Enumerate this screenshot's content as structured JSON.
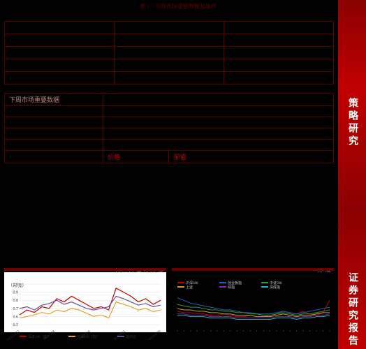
{
  "sidebar": {
    "label1": "策略研究",
    "label2": "证券研究报告"
  },
  "top_note": "表 1：下周市场重要数据及事件",
  "table1": {
    "cols": [
      "",
      "",
      ""
    ],
    "rows": [
      [
        "",
        "",
        ""
      ],
      [
        "",
        "",
        ""
      ],
      [
        "",
        "",
        ""
      ],
      [
        "",
        "",
        ""
      ],
      [
        "",
        "",
        ""
      ]
    ]
  },
  "table2": {
    "header_row": [
      "下周市场重要数据",
      ""
    ],
    "rows": [
      [
        "",
        ""
      ],
      [
        "",
        ""
      ],
      [
        "",
        ""
      ],
      [
        "",
        ""
      ],
      [
        "",
        "价格",
        "前值"
      ]
    ]
  },
  "chart1": {
    "title_left": "103 元-105 元",
    "title_right": "特殊情景估值看",
    "yleft_label": "（元/克）",
    "yleft_ticks": [
      0.5,
      0.6,
      0.7,
      0.8,
      0.9,
      1.0
    ],
    "x_labels": [
      "2012/12/12",
      "2014/7/18",
      "2016/02/4",
      "2017/09/1",
      "2019/04/30"
    ],
    "series": [
      {
        "name": "深证100（右）",
        "color": "#c00000",
        "values": [
          0.62,
          0.68,
          0.65,
          0.72,
          0.7,
          0.82,
          0.78,
          0.85,
          0.8,
          0.75,
          0.7,
          0.72,
          0.68,
          0.95,
          0.9,
          0.85,
          0.78,
          0.82,
          0.75,
          0.8
        ]
      },
      {
        "name": "沪深300（右）",
        "color": "#e8a030",
        "values": [
          0.58,
          0.6,
          0.62,
          0.65,
          0.63,
          0.68,
          0.66,
          0.7,
          0.68,
          0.64,
          0.6,
          0.62,
          0.58,
          0.78,
          0.75,
          0.72,
          0.68,
          0.7,
          0.66,
          0.68
        ]
      },
      {
        "name": "溢价比",
        "color": "#6a4a9a",
        "values": [
          0.7,
          0.72,
          0.68,
          0.74,
          0.76,
          0.8,
          0.75,
          0.78,
          0.74,
          0.7,
          0.68,
          0.7,
          0.72,
          0.85,
          0.82,
          0.78,
          0.74,
          0.76,
          0.72,
          0.74
        ]
      }
    ]
  },
  "chart2": {
    "title_right": "数据",
    "legend_items": [
      {
        "name": "沪深300",
        "color": "#c00000"
      },
      {
        "name": "创业板指",
        "color": "#2060c0"
      },
      {
        "name": "中证500",
        "color": "#30a030"
      },
      {
        "name": "上证",
        "color": "#d0a020"
      },
      {
        "name": "综指",
        "color": "#7030a0"
      },
      {
        "name": "深成指",
        "color": "#20b0c0"
      }
    ],
    "series": [
      {
        "color": "#c00000",
        "values": [
          14,
          13,
          13,
          12,
          12,
          11,
          11,
          12,
          11,
          10,
          10,
          11,
          10,
          10,
          11,
          12,
          14,
          13,
          12,
          14,
          12,
          11,
          13,
          22
        ]
      },
      {
        "color": "#2060c0",
        "values": [
          24,
          22,
          20,
          19,
          18,
          17,
          16,
          15,
          15,
          14,
          13,
          13,
          12,
          12,
          12,
          13,
          14,
          13,
          12,
          13,
          14,
          15,
          16,
          17
        ]
      },
      {
        "color": "#30a030",
        "values": [
          19,
          18,
          17,
          17,
          16,
          15,
          15,
          14,
          14,
          13,
          13,
          12,
          12,
          11,
          11,
          12,
          13,
          12,
          11,
          12,
          12,
          13,
          14,
          15
        ]
      },
      {
        "color": "#d0a020",
        "values": [
          16,
          15,
          15,
          14,
          14,
          13,
          13,
          12,
          12,
          11,
          11,
          11,
          10,
          10,
          10,
          11,
          12,
          11,
          10,
          11,
          11,
          12,
          13,
          13
        ]
      },
      {
        "color": "#7030a0",
        "values": [
          12,
          12,
          11,
          11,
          11,
          10,
          10,
          10,
          10,
          9,
          9,
          9,
          9,
          9,
          9,
          10,
          10,
          10,
          9,
          10,
          10,
          11,
          11,
          12
        ]
      },
      {
        "color": "#20b0c0",
        "values": [
          11,
          11,
          10,
          10,
          10,
          9,
          9,
          9,
          9,
          8,
          8,
          8,
          8,
          8,
          8,
          9,
          9,
          9,
          8,
          9,
          9,
          10,
          10,
          11
        ]
      }
    ],
    "ylim": [
      0,
      30
    ]
  }
}
